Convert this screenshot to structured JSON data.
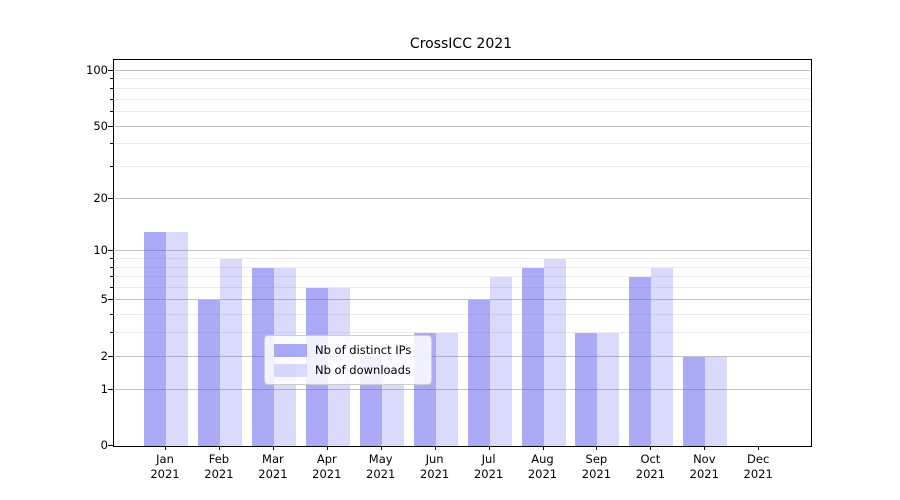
{
  "title": "CrossICC 2021",
  "chart_data": {
    "type": "bar",
    "title": "CrossICC 2021",
    "categories": [
      "Jan 2021",
      "Feb 2021",
      "Mar 2021",
      "Apr 2021",
      "May 2021",
      "Jun 2021",
      "Jul 2021",
      "Aug 2021",
      "Sep 2021",
      "Oct 2021",
      "Nov 2021",
      "Dec 2021"
    ],
    "x_tick_months": [
      "Jan",
      "Feb",
      "Mar",
      "Apr",
      "May",
      "Jun",
      "Jul",
      "Aug",
      "Sep",
      "Oct",
      "Nov",
      "Dec"
    ],
    "x_tick_year": "2021",
    "series": [
      {
        "name": "Nb of distinct IPs",
        "values": [
          13,
          5,
          8,
          6,
          2,
          3,
          5,
          8,
          3,
          7,
          2,
          0
        ],
        "color": "rgba(85,85,240,0.50)"
      },
      {
        "name": "Nb of downloads",
        "values": [
          13,
          9,
          8,
          6,
          2,
          3,
          7,
          9,
          3,
          8,
          2,
          0
        ],
        "color": "rgba(85,85,240,0.22)"
      }
    ],
    "xlabel": "",
    "ylabel": "",
    "y_scale": "log1p",
    "y_axis_top_value": 114,
    "y_major_ticks": [
      100,
      50,
      20,
      10,
      5,
      2,
      1,
      0
    ],
    "y_minor_gridlines": [
      3,
      4,
      6,
      7,
      8,
      9,
      30,
      40,
      60,
      70,
      80,
      90
    ],
    "grid": "on",
    "legend_position": "lower center",
    "colors": {
      "bar_base": "#5555f0",
      "major_grid": "#c3c3c3",
      "minor_grid": "#ececec",
      "axis": "#000000",
      "legend_border": "#cccccc"
    }
  }
}
